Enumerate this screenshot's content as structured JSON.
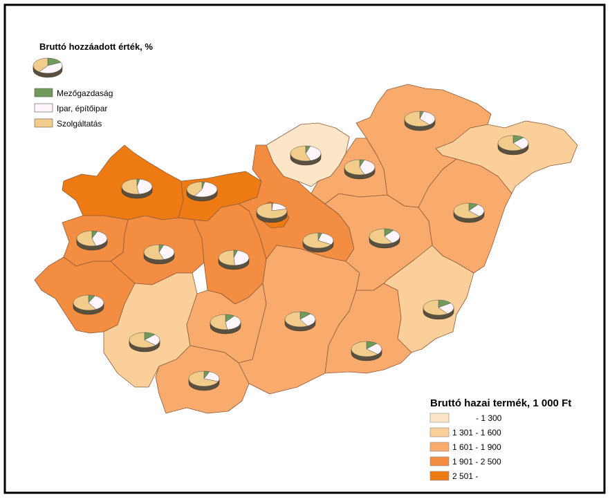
{
  "pie_legend": {
    "title": "Bruttó hozzáadott érték, %",
    "items": [
      {
        "label": "Mezőgazdaság",
        "color": "#6f9a5a",
        "icon": "agriculture-swatch"
      },
      {
        "label": "Ipar, építőipar",
        "color": "#fff6fb",
        "icon": "industry-swatch"
      },
      {
        "label": "Szolgáltatás",
        "color": "#f2cc8a",
        "icon": "services-swatch"
      }
    ]
  },
  "gdp_legend": {
    "title": "Bruttó hazai termék, 1 000 Ft",
    "classes": [
      {
        "label": "- 1 300",
        "color": "#fde6c8"
      },
      {
        "label": "1 301 - 1 600",
        "color": "#fbcf9a"
      },
      {
        "label": "1 601 - 1 900",
        "color": "#f8ab6c"
      },
      {
        "label": "1 901 - 2 500",
        "color": "#f38d42"
      },
      {
        "label": "2 501 -",
        "color": "#ee7a14"
      }
    ]
  },
  "colors": {
    "agriculture": "#6f9a5a",
    "industry": "#fff6fb",
    "services": "#f2cc8a",
    "pie_side": "#5a5040",
    "border": "#8a5a3a"
  }
}
